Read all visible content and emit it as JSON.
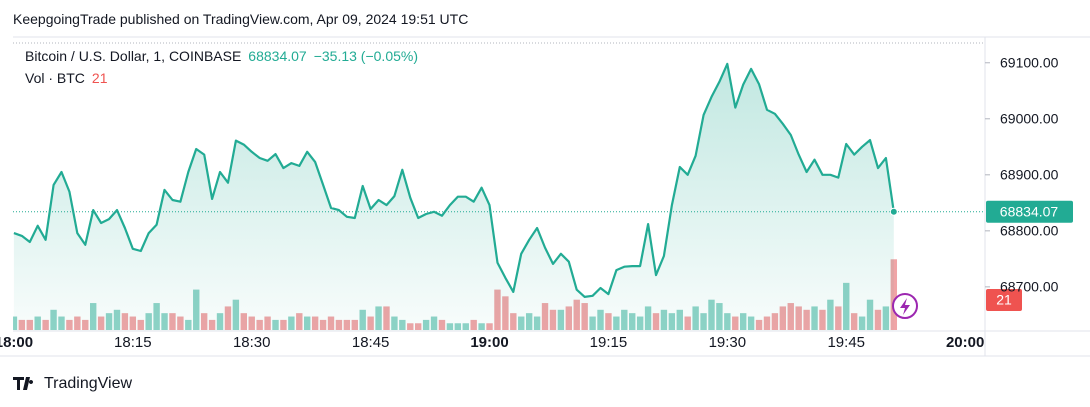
{
  "header": {
    "published": "KeepgoingTrade published on TradingView.com, Apr 09, 2024 19:51 UTC",
    "change": "−35.13 (−0.05%)"
  },
  "footer": {
    "brand": "TradingView"
  },
  "chart_data": {
    "type": "line",
    "x": [
      "18:00",
      "18:01",
      "18:02",
      "18:03",
      "18:04",
      "18:05",
      "18:06",
      "18:07",
      "18:08",
      "18:09",
      "18:10",
      "18:11",
      "18:12",
      "18:13",
      "18:14",
      "18:15",
      "18:16",
      "18:17",
      "18:18",
      "18:19",
      "18:20",
      "18:21",
      "18:22",
      "18:23",
      "18:24",
      "18:25",
      "18:26",
      "18:27",
      "18:28",
      "18:29",
      "18:30",
      "18:31",
      "18:32",
      "18:33",
      "18:34",
      "18:35",
      "18:36",
      "18:37",
      "18:38",
      "18:39",
      "18:40",
      "18:41",
      "18:42",
      "18:43",
      "18:44",
      "18:45",
      "18:46",
      "18:47",
      "18:48",
      "18:49",
      "18:50",
      "18:51",
      "18:52",
      "18:53",
      "18:54",
      "18:55",
      "18:56",
      "18:57",
      "18:58",
      "18:59",
      "19:00",
      "19:01",
      "19:02",
      "19:03",
      "19:04",
      "19:05",
      "19:06",
      "19:07",
      "19:08",
      "19:09",
      "19:10",
      "19:11",
      "19:12",
      "19:13",
      "19:14",
      "19:15",
      "19:16",
      "19:17",
      "19:18",
      "19:19",
      "19:20",
      "19:21",
      "19:22",
      "19:23",
      "19:24",
      "19:25",
      "19:26",
      "19:27",
      "19:28",
      "19:29",
      "19:30",
      "19:31",
      "19:32",
      "19:33",
      "19:34",
      "19:35",
      "19:36",
      "19:37",
      "19:38",
      "19:39",
      "19:40",
      "19:41",
      "19:42",
      "19:43",
      "19:44",
      "19:45",
      "19:46",
      "19:47",
      "19:48",
      "19:49",
      "19:50",
      "19:51"
    ],
    "xlim": [
      "17:59",
      "20:02"
    ],
    "xticks": [
      "18:00",
      "18:15",
      "18:30",
      "18:45",
      "19:00",
      "19:15",
      "19:30",
      "19:45",
      "20:00"
    ],
    "series": [
      {
        "name": "Bitcoin / U.S. Dollar, 1, COINBASE",
        "color": "#22ab94",
        "values": [
          68796,
          68791,
          68780,
          68809,
          68784,
          68882,
          68905,
          68870,
          68796,
          68775,
          68837,
          68814,
          68821,
          68837,
          68805,
          68768,
          68764,
          68796,
          68811,
          68873,
          68855,
          68852,
          68905,
          68946,
          68936,
          68857,
          68905,
          68886,
          68961,
          68954,
          68941,
          68930,
          68925,
          68937,
          68912,
          68921,
          68916,
          68941,
          68923,
          68882,
          68841,
          68837,
          68825,
          68823,
          68880,
          68839,
          68855,
          68846,
          68862,
          68909,
          68859,
          68823,
          68830,
          68834,
          68827,
          68846,
          68861,
          68861,
          68852,
          68877,
          68846,
          68743,
          68716,
          68691,
          68759,
          68784,
          68805,
          68770,
          68741,
          68759,
          68745,
          68695,
          68682,
          68684,
          68698,
          68687,
          68730,
          68736,
          68737,
          68737,
          68812,
          68721,
          68755,
          68846,
          68914,
          68900,
          68934,
          69007,
          69039,
          69066,
          69098,
          69020,
          69061,
          69089,
          69062,
          69016,
          69009,
          68991,
          68971,
          68936,
          68905,
          68927,
          68900,
          68900,
          68895,
          68955,
          68936,
          68950,
          68962,
          68912,
          68930,
          68834.07
        ]
      },
      {
        "name": "Vol · BTC",
        "up_color": "#8fd3c7",
        "down_color": "#f0a4a6",
        "values": [
          4,
          3,
          3,
          4,
          3,
          6,
          4,
          3,
          4,
          3,
          8,
          4,
          5,
          6,
          5,
          4,
          3,
          5,
          8,
          5,
          5,
          4,
          3,
          12,
          5,
          3,
          5,
          7,
          9,
          5,
          4,
          3,
          4,
          3,
          3,
          4,
          5,
          4,
          4,
          3,
          4,
          3,
          3,
          3,
          6,
          4,
          7,
          7,
          4,
          3,
          2,
          2,
          3,
          4,
          3,
          2,
          2,
          2,
          3,
          2,
          2,
          12,
          10,
          5,
          4,
          5,
          4,
          8,
          6,
          6,
          7,
          9,
          8,
          4,
          6,
          5,
          4,
          6,
          5,
          4,
          7,
          5,
          6,
          5,
          6,
          4,
          7,
          5,
          9,
          8,
          5,
          4,
          5,
          4,
          3,
          4,
          5,
          7,
          8,
          7,
          6,
          7,
          6,
          9,
          7,
          14,
          5,
          4,
          9,
          6,
          7,
          21
        ]
      }
    ],
    "ylim": [
      68623,
      69146
    ],
    "yticks": [
      {
        "value": 68700,
        "label": "68700.00"
      },
      {
        "value": 68800,
        "label": "68800.00"
      },
      {
        "value": 68900,
        "label": "68900.00"
      },
      {
        "value": 69000,
        "label": "69000.00"
      },
      {
        "value": 69100,
        "label": "69100.00"
      }
    ],
    "volume_lim": [
      0,
      87
    ],
    "grid": false
  }
}
